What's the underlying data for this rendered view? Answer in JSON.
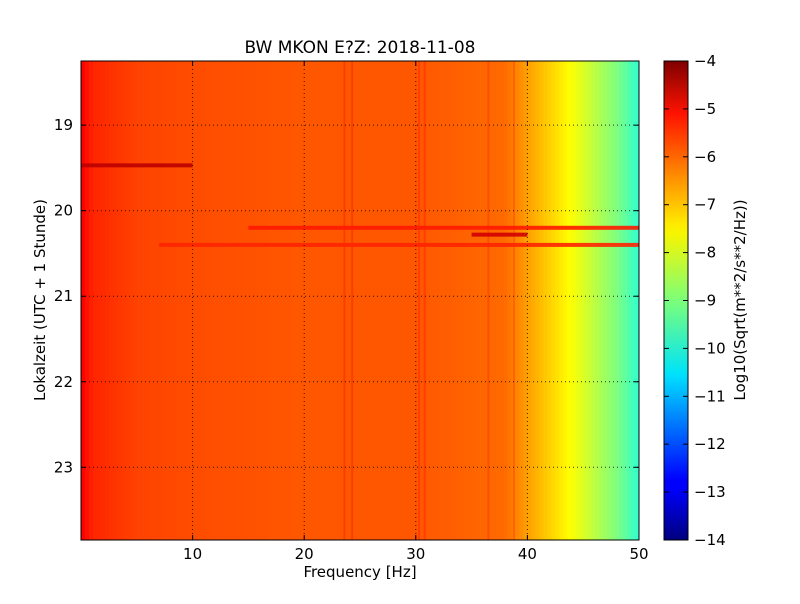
{
  "chart_data": {
    "type": "heatmap",
    "title": "BW MKON E?Z: 2018-11-08",
    "xlabel": "Frequency [Hz]",
    "ylabel": "Lokalzeit (UTC + 1 Stunde)",
    "xlim": [
      0,
      50
    ],
    "ylim": [
      18.25,
      23.85
    ],
    "x_ticks": [
      10,
      20,
      30,
      40,
      50
    ],
    "y_ticks": [
      19,
      20,
      21,
      22,
      23
    ],
    "y_inverted": true,
    "grid": true,
    "colormap": "jet",
    "colorbar": {
      "label": "Log10(Sqrt(m**2/s**2/Hz))",
      "min": -14,
      "max": -4,
      "ticks": [
        -4,
        -5,
        -6,
        -7,
        -8,
        -9,
        -10,
        -11,
        -12,
        -13,
        -14
      ]
    },
    "spectral_profile": {
      "frequencies_hz": [
        0,
        1,
        5,
        10,
        20,
        30,
        38,
        40,
        42,
        44,
        46,
        48,
        50
      ],
      "log_amplitude": [
        -5.2,
        -5.6,
        -5.9,
        -6.0,
        -6.1,
        -6.1,
        -6.3,
        -6.8,
        -7.3,
        -7.8,
        -8.4,
        -9.0,
        -9.8
      ]
    },
    "vertical_lines_hz": [
      23.6,
      24.3,
      30.3,
      30.8,
      36.5,
      38.8
    ],
    "horizontal_bands": [
      {
        "time": 19.47,
        "f_min": 0,
        "f_max": 10,
        "value": -4.6
      },
      {
        "time": 20.2,
        "f_min": 15,
        "f_max": 50,
        "value": -5.5
      },
      {
        "time": 20.28,
        "f_min": 35,
        "f_max": 40,
        "value": -4.8
      },
      {
        "time": 20.4,
        "f_min": 7,
        "f_max": 50,
        "value": -5.6
      }
    ]
  }
}
